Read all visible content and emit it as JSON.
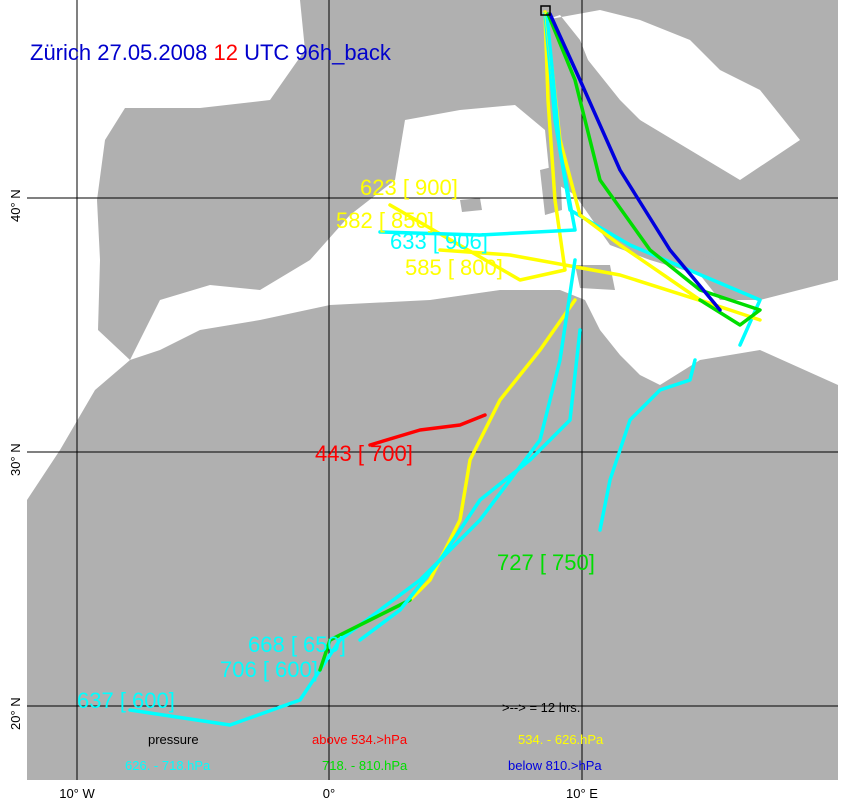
{
  "title": {
    "place_date": "Zürich 27.05.2008",
    "hour": "12",
    "rest": "UTC 96h_back"
  },
  "axes": {
    "lat_labels": [
      "40° N",
      "30° N",
      "20° N"
    ],
    "lon_labels": [
      "10° W",
      "0°",
      "10° E"
    ]
  },
  "trajectory_labels": [
    "623 [ 900]",
    "582 [ 850]",
    "633 [ 906]",
    "585 [ 800]",
    "443 [ 700]",
    "727 [ 750]",
    "668 [ 650]",
    "706 [ 600]",
    "637 [ 600]"
  ],
  "legend": {
    "interval": ">--> = 12 hrs.",
    "heading": "pressure",
    "classes": [
      "above  534.>hPa",
      "534. -    626.hPa",
      "626. -    718.hPa",
      "718. -    810.hPa",
      "below  810.>hPa"
    ]
  }
}
